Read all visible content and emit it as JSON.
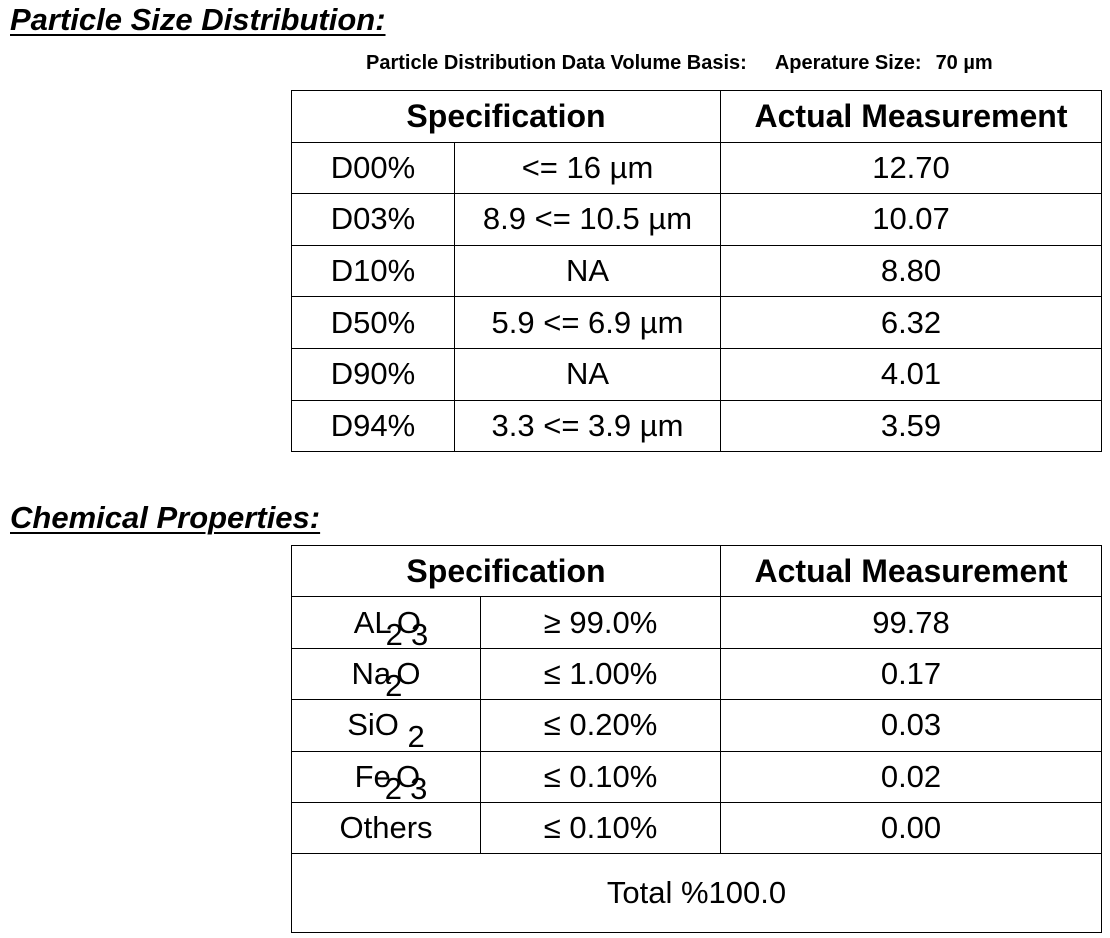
{
  "particle_size": {
    "title": "Particle Size Distribution:",
    "meta": {
      "basis_label": "Particle Distribution Data Volume Basis:",
      "aperture_label": "Aperature Size:",
      "aperture_value": "70 µm"
    },
    "headers": {
      "specification": "Specification",
      "actual": "Actual Measurement"
    },
    "rows": [
      {
        "label": "D00%",
        "spec": "<= 16 µm",
        "actual": "12.70"
      },
      {
        "label": "D03%",
        "spec": "8.9 <= 10.5 µm",
        "actual": "10.07"
      },
      {
        "label": "D10%",
        "spec": "NA",
        "actual": "8.80"
      },
      {
        "label": "D50%",
        "spec": "5.9 <= 6.9 µm",
        "actual": "6.32"
      },
      {
        "label": "D90%",
        "spec": "NA",
        "actual": "4.01"
      },
      {
        "label": "D94%",
        "spec": "3.3 <= 3.9 µm",
        "actual": "3.59"
      }
    ]
  },
  "chemical": {
    "title": "Chemical Properties:",
    "headers": {
      "specification": "Specification",
      "actual": "Actual Measurement"
    },
    "rows": [
      {
        "name_base": "AL",
        "name_sub": "2",
        "name_tail": "O",
        "name_sub2": "3",
        "spec": "≥ 99.0%",
        "actual": "99.78"
      },
      {
        "name_base": "Na",
        "name_sub": "2",
        "name_tail": "O",
        "name_sub2": "",
        "spec": "≤ 1.00%",
        "actual": "0.17"
      },
      {
        "name_base": "SiO",
        "name_sub": "2",
        "name_tail": "",
        "name_sub2": "",
        "spec": "≤ 0.20%",
        "actual": "0.03"
      },
      {
        "name_base": "Fe",
        "name_sub": "2",
        "name_tail": "O",
        "name_sub2": "3",
        "spec": "≤ 0.10%",
        "actual": "0.02"
      },
      {
        "name_base": "Others",
        "name_sub": "",
        "name_tail": "",
        "name_sub2": "",
        "spec": "≤ 0.10%",
        "actual": "0.00"
      }
    ],
    "total_label": "Total %",
    "total_value": "100.0"
  }
}
